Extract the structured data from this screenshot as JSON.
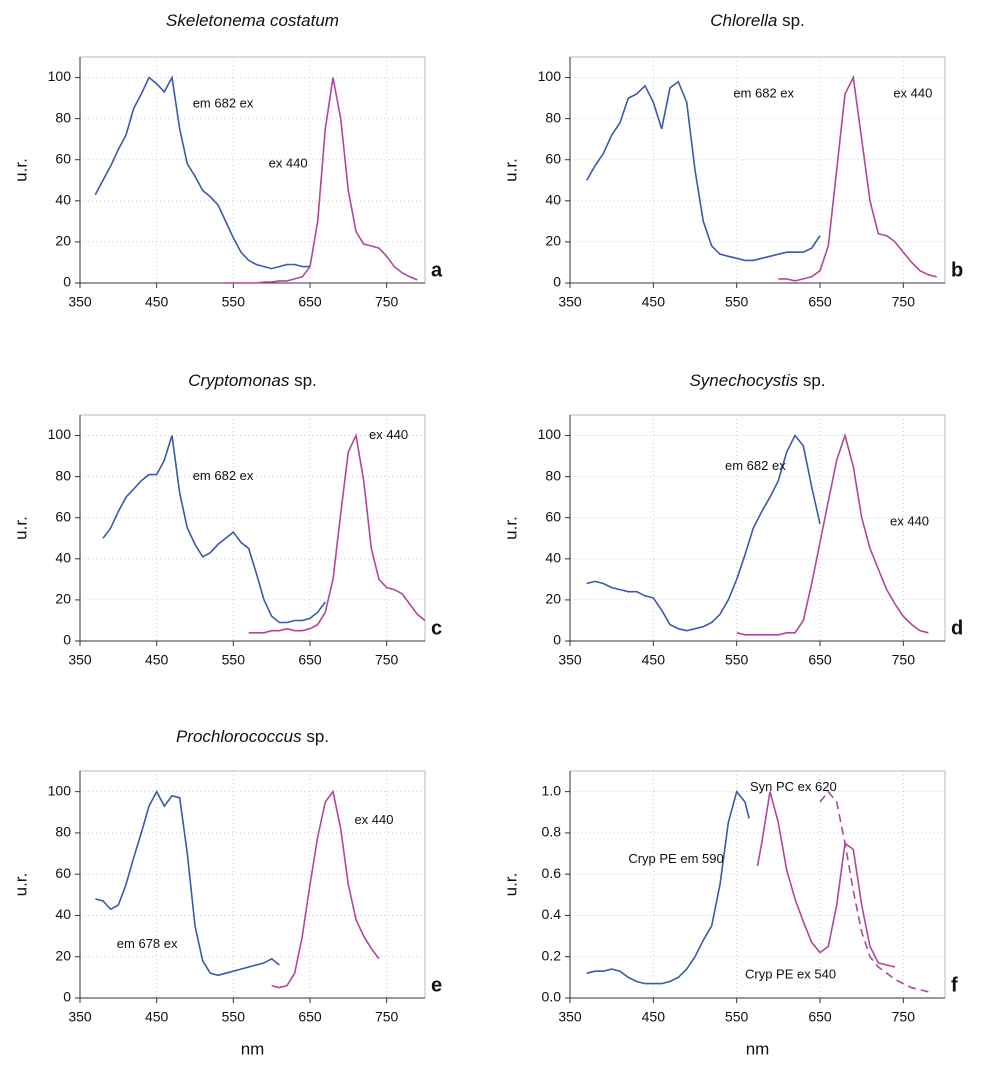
{
  "chart_data": [
    {
      "type": "line",
      "title": "Skeletonema costatum",
      "panel_label": "a",
      "ylabel": "u.r.",
      "xlim": [
        350,
        800
      ],
      "xticks": [
        350,
        450,
        550,
        650,
        750
      ],
      "ylim": [
        0,
        110
      ],
      "yticks": [
        0,
        20,
        40,
        60,
        80,
        100
      ],
      "grid": true,
      "series": [
        {
          "name": "em 682 ex",
          "color": "#3b5ba5",
          "x": [
            370,
            380,
            390,
            400,
            410,
            420,
            430,
            440,
            450,
            460,
            470,
            480,
            490,
            500,
            510,
            520,
            530,
            540,
            550,
            560,
            570,
            580,
            590,
            600,
            610,
            620,
            630,
            640,
            650
          ],
          "values": [
            43,
            50,
            57,
            65,
            72,
            85,
            92,
            100,
            97,
            93,
            100,
            75,
            58,
            52,
            45,
            42,
            38,
            30,
            22,
            15,
            11,
            9,
            8,
            7,
            8,
            9,
            9,
            8,
            8
          ]
        },
        {
          "name": "ex 440",
          "color": "#b0489a",
          "x": [
            540,
            550,
            560,
            570,
            580,
            590,
            600,
            610,
            620,
            630,
            640,
            650,
            660,
            670,
            680,
            690,
            700,
            710,
            720,
            730,
            740,
            750,
            760,
            770,
            780,
            790
          ],
          "values": [
            0,
            0,
            0,
            0,
            0,
            0.5,
            0.5,
            1,
            1,
            2,
            3,
            8,
            30,
            75,
            100,
            80,
            45,
            25,
            19,
            18,
            17,
            13,
            8,
            5,
            3,
            1.5
          ]
        }
      ]
    },
    {
      "type": "line",
      "title": "Chlorella sp.",
      "panel_label": "b",
      "ylabel": "u.r.",
      "xlim": [
        350,
        800
      ],
      "xticks": [
        350,
        450,
        550,
        650,
        750
      ],
      "ylim": [
        0,
        110
      ],
      "yticks": [
        0,
        20,
        40,
        60,
        80,
        100
      ],
      "grid": true,
      "series": [
        {
          "name": "em 682 ex",
          "color": "#3b5ba5",
          "x": [
            370,
            380,
            390,
            400,
            410,
            420,
            430,
            440,
            450,
            460,
            470,
            480,
            490,
            500,
            510,
            520,
            530,
            540,
            550,
            560,
            570,
            580,
            590,
            600,
            610,
            620,
            630,
            640,
            650
          ],
          "values": [
            50,
            57,
            63,
            72,
            78,
            90,
            92,
            96,
            88,
            75,
            95,
            98,
            88,
            55,
            30,
            18,
            14,
            13,
            12,
            11,
            11,
            12,
            13,
            14,
            15,
            15,
            15,
            17,
            23
          ]
        },
        {
          "name": "ex 440",
          "color": "#b0489a",
          "x": [
            600,
            610,
            620,
            630,
            640,
            650,
            660,
            670,
            680,
            690,
            700,
            710,
            720,
            730,
            740,
            750,
            760,
            770,
            780,
            790
          ],
          "values": [
            2,
            2,
            1,
            2,
            3,
            6,
            18,
            55,
            92,
            100,
            70,
            40,
            24,
            23,
            20,
            15,
            10,
            6,
            4,
            3
          ]
        }
      ]
    },
    {
      "type": "line",
      "title": "Cryptomonas sp.",
      "panel_label": "c",
      "ylabel": "u.r.",
      "xlim": [
        350,
        800
      ],
      "xticks": [
        350,
        450,
        550,
        650,
        750
      ],
      "ylim": [
        0,
        110
      ],
      "yticks": [
        0,
        20,
        40,
        60,
        80,
        100
      ],
      "grid": true,
      "series": [
        {
          "name": "em 682 ex",
          "color": "#3b5ba5",
          "x": [
            380,
            390,
            400,
            410,
            420,
            430,
            440,
            450,
            460,
            470,
            480,
            490,
            500,
            510,
            520,
            530,
            540,
            550,
            560,
            570,
            580,
            590,
            600,
            610,
            620,
            630,
            640,
            650,
            660,
            670
          ],
          "values": [
            50,
            55,
            63,
            70,
            74,
            78,
            81,
            81,
            88,
            100,
            72,
            55,
            47,
            41,
            43,
            47,
            50,
            53,
            48,
            45,
            33,
            20,
            12,
            9,
            9,
            10,
            10,
            11,
            14,
            19
          ]
        },
        {
          "name": "ex 440",
          "color": "#b0489a",
          "x": [
            570,
            580,
            590,
            600,
            610,
            620,
            630,
            640,
            650,
            660,
            670,
            680,
            690,
            700,
            710,
            720,
            730,
            740,
            750,
            760,
            770,
            780,
            790,
            800
          ],
          "values": [
            4,
            4,
            4,
            5,
            5,
            6,
            5,
            5,
            6,
            8,
            14,
            30,
            62,
            92,
            100,
            78,
            45,
            30,
            26,
            25,
            23,
            18,
            13,
            10
          ]
        }
      ]
    },
    {
      "type": "line",
      "title": "Synechocystis sp.",
      "panel_label": "d",
      "ylabel": "u.r.",
      "xlim": [
        350,
        800
      ],
      "xticks": [
        350,
        450,
        550,
        650,
        750
      ],
      "ylim": [
        0,
        110
      ],
      "yticks": [
        0,
        20,
        40,
        60,
        80,
        100
      ],
      "grid": true,
      "series": [
        {
          "name": "em 682 ex",
          "color": "#3b5ba5",
          "x": [
            370,
            380,
            390,
            400,
            410,
            420,
            430,
            440,
            450,
            460,
            470,
            480,
            490,
            500,
            510,
            520,
            530,
            540,
            550,
            560,
            570,
            580,
            590,
            600,
            610,
            620,
            630,
            640,
            650
          ],
          "values": [
            28,
            29,
            28,
            26,
            25,
            24,
            24,
            22,
            21,
            15,
            8,
            6,
            5,
            6,
            7,
            9,
            13,
            20,
            30,
            42,
            55,
            63,
            70,
            78,
            92,
            100,
            95,
            75,
            57
          ]
        },
        {
          "name": "ex 440",
          "color": "#b0489a",
          "x": [
            550,
            560,
            570,
            580,
            590,
            600,
            610,
            620,
            630,
            640,
            650,
            660,
            670,
            680,
            690,
            700,
            710,
            720,
            730,
            740,
            750,
            760,
            770,
            780
          ],
          "values": [
            4,
            3,
            3,
            3,
            3,
            3,
            4,
            4,
            10,
            28,
            48,
            68,
            88,
            100,
            85,
            60,
            45,
            35,
            25,
            18,
            12,
            8,
            5,
            4
          ]
        }
      ]
    },
    {
      "type": "line",
      "title": "Prochlorococcus sp.",
      "panel_label": "e",
      "ylabel": "u.r.",
      "xlabel": "nm",
      "xlim": [
        350,
        800
      ],
      "xticks": [
        350,
        450,
        550,
        650,
        750
      ],
      "ylim": [
        0,
        110
      ],
      "yticks": [
        0,
        20,
        40,
        60,
        80,
        100
      ],
      "grid": true,
      "series": [
        {
          "name": "em 678 ex",
          "color": "#3b5ba5",
          "x": [
            370,
            380,
            390,
            400,
            410,
            420,
            430,
            440,
            450,
            460,
            470,
            480,
            490,
            500,
            510,
            520,
            530,
            540,
            550,
            560,
            570,
            580,
            590,
            600,
            610
          ],
          "values": [
            48,
            47,
            43,
            45,
            55,
            68,
            80,
            93,
            100,
            93,
            98,
            97,
            70,
            35,
            18,
            12,
            11,
            12,
            13,
            14,
            15,
            16,
            17,
            19,
            16
          ]
        },
        {
          "name": "ex 440",
          "color": "#b0489a",
          "x": [
            600,
            610,
            620,
            630,
            640,
            650,
            660,
            670,
            680,
            690,
            700,
            710,
            720,
            730,
            740
          ],
          "values": [
            6,
            5,
            6,
            12,
            30,
            55,
            78,
            95,
            100,
            82,
            55,
            38,
            30,
            24,
            19
          ]
        }
      ]
    },
    {
      "type": "line",
      "panel_label": "f",
      "ylabel": "u.r.",
      "xlabel": "nm",
      "xlim": [
        350,
        800
      ],
      "xticks": [
        350,
        450,
        550,
        650,
        750
      ],
      "ylim": [
        0,
        1.1
      ],
      "yticks": [
        {
          "value": 0,
          "label": "0.0"
        },
        0.2,
        0.4,
        0.6,
        0.8,
        {
          "value": 1,
          "label": "1.0"
        }
      ],
      "grid": true,
      "series": [
        {
          "name": "Cryp PE em 590",
          "color": "#3b5ba5",
          "x": [
            370,
            380,
            390,
            400,
            410,
            420,
            430,
            440,
            450,
            460,
            470,
            480,
            490,
            500,
            510,
            520,
            530,
            540,
            550,
            560,
            565
          ],
          "values": [
            0.12,
            0.13,
            0.13,
            0.14,
            0.13,
            0.1,
            0.08,
            0.07,
            0.07,
            0.07,
            0.08,
            0.1,
            0.14,
            0.2,
            0.28,
            0.35,
            0.55,
            0.85,
            1.0,
            0.95,
            0.87
          ]
        },
        {
          "name": "Cryp PE ex 540",
          "color": "#b0489a",
          "x": [
            575,
            580,
            590,
            600,
            610,
            620,
            630,
            640,
            650,
            660,
            670,
            680,
            690,
            700,
            710,
            720,
            730,
            740
          ],
          "values": [
            0.64,
            0.75,
            1.0,
            0.85,
            0.62,
            0.48,
            0.37,
            0.27,
            0.22,
            0.25,
            0.45,
            0.75,
            0.72,
            0.45,
            0.25,
            0.17,
            0.16,
            0.15
          ]
        },
        {
          "name": "Syn PC ex 620",
          "color": "#b0489a",
          "dashed": true,
          "x": [
            650,
            660,
            670,
            680,
            690,
            700,
            710,
            720,
            730,
            740,
            750,
            760,
            770,
            780
          ],
          "values": [
            0.95,
            1.0,
            0.95,
            0.75,
            0.52,
            0.32,
            0.2,
            0.15,
            0.12,
            0.09,
            0.07,
            0.05,
            0.04,
            0.03
          ]
        }
      ]
    }
  ]
}
